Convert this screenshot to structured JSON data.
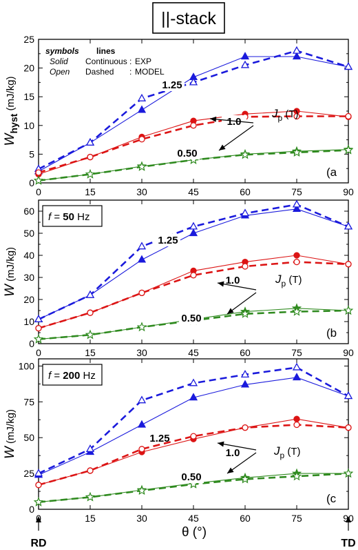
{
  "figure_title": "||-stack",
  "x_axis": {
    "label": "θ (°)",
    "ticks": [
      0,
      15,
      30,
      45,
      60,
      75,
      90
    ],
    "left_end": "RD",
    "right_end": "TD"
  },
  "legend": {
    "head_symbols": "symbols",
    "head_lines": "lines",
    "row1": {
      "symbols": "Solid",
      "lines": "Continuous",
      "sep": ":",
      "meaning": "EXP"
    },
    "row2": {
      "symbols": "Open",
      "lines": "Dashed",
      "sep": ":",
      "meaning": "MODEL"
    }
  },
  "jp_label": "J p (T)",
  "colors": {
    "1.25": "#1a1adc",
    "1.0": "#dc1414",
    "0.50": "#2f8a1f"
  },
  "chart_data": [
    {
      "type": "line",
      "panel_tag": "(a",
      "ylabel": "W hyst (mJ/kg)",
      "ylim": [
        0,
        25
      ],
      "yticks": [
        0,
        5,
        10,
        15,
        20,
        25
      ],
      "x": [
        0,
        15,
        30,
        45,
        60,
        75,
        90
      ],
      "series": [
        {
          "name": "1.25",
          "marker": "triangle",
          "exp": [
            2.0,
            7.0,
            12.7,
            18.4,
            22.0,
            22.0,
            20.2
          ],
          "model": [
            2.4,
            7.0,
            14.7,
            17.5,
            20.5,
            23.0,
            20.2
          ]
        },
        {
          "name": "1.0",
          "marker": "circle",
          "exp": [
            1.5,
            4.5,
            8.0,
            10.8,
            12.0,
            12.5,
            11.5
          ],
          "model": [
            1.8,
            4.5,
            7.6,
            10.0,
            11.5,
            11.6,
            11.6
          ]
        },
        {
          "name": "0.50",
          "marker": "star",
          "exp": [
            0.4,
            1.5,
            2.9,
            4.0,
            5.0,
            5.5,
            5.8
          ],
          "model": [
            0.4,
            1.5,
            2.8,
            4.0,
            4.9,
            5.3,
            5.7
          ]
        }
      ]
    },
    {
      "type": "line",
      "panel_tag": "(b",
      "freq_label_pre": "f",
      "freq_label_val": "= 50",
      "freq_label_unit": "Hz",
      "ylabel": "W (mJ/kg)",
      "ylim": [
        0,
        65
      ],
      "yticks": [
        0,
        10,
        20,
        30,
        40,
        50,
        60
      ],
      "x": [
        0,
        15,
        30,
        45,
        60,
        75,
        90
      ],
      "series": [
        {
          "name": "1.25",
          "marker": "triangle",
          "exp": [
            11.0,
            22.0,
            38.0,
            50.0,
            58.0,
            61.0,
            53.0
          ],
          "model": [
            11.0,
            22.0,
            44.0,
            53.0,
            59.0,
            63.0,
            53.0
          ]
        },
        {
          "name": "1.0",
          "marker": "circle",
          "exp": [
            7.0,
            14.0,
            23.0,
            33.0,
            37.0,
            40.0,
            36.0
          ],
          "model": [
            7.0,
            14.0,
            23.0,
            31.0,
            35.0,
            37.0,
            36.0
          ]
        },
        {
          "name": "0.50",
          "marker": "star",
          "exp": [
            2.0,
            4.0,
            7.5,
            11.0,
            14.5,
            16.0,
            15.0
          ],
          "model": [
            2.0,
            4.0,
            7.5,
            10.5,
            13.5,
            14.5,
            15.0
          ]
        }
      ]
    },
    {
      "type": "line",
      "panel_tag": "(c",
      "freq_label_pre": "f",
      "freq_label_val": "= 200",
      "freq_label_unit": "Hz",
      "ylabel": "W (mJ/kg)",
      "ylim": [
        0,
        105
      ],
      "yticks": [
        0,
        25,
        50,
        75,
        100
      ],
      "x": [
        0,
        15,
        30,
        45,
        60,
        75,
        90
      ],
      "series": [
        {
          "name": "1.25",
          "marker": "triangle",
          "exp": [
            24.0,
            40.0,
            59.0,
            78.0,
            87.0,
            92.0,
            79.0
          ],
          "model": [
            25.0,
            42.0,
            76.0,
            88.0,
            94.0,
            99.0,
            79.0
          ]
        },
        {
          "name": "1.0",
          "marker": "circle",
          "exp": [
            17.0,
            27.0,
            40.0,
            49.0,
            57.0,
            63.0,
            57.0
          ],
          "model": [
            17.0,
            27.0,
            42.0,
            51.0,
            57.0,
            59.0,
            57.0
          ]
        },
        {
          "name": "0.50",
          "marker": "star",
          "exp": [
            5.0,
            8.5,
            13.5,
            18.0,
            22.0,
            25.0,
            25.0
          ],
          "model": [
            5.0,
            8.5,
            13.0,
            17.5,
            21.0,
            23.0,
            25.0
          ]
        }
      ]
    }
  ]
}
